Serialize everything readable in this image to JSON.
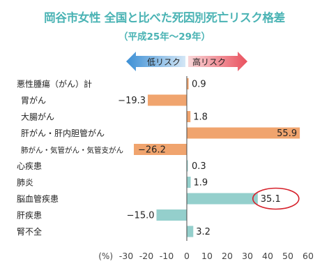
{
  "title": "岡谷市女性 全国と比べた死因別死亡リスク格差",
  "subtitle": "（平成25年〜29年）",
  "legend": {
    "low_risk": "低リスク",
    "high_risk": "高リスク"
  },
  "colors": {
    "title": "#4ab3b4",
    "cancer_bars": "#f0a46e",
    "other_bars": "#94cfcc",
    "low_arrow": "#3c8fd5",
    "high_arrow": "#e9515e",
    "highlight_circle": "#d6202a"
  },
  "chart_data": {
    "type": "bar",
    "orientation": "horizontal",
    "title": "岡谷市女性 全国と比べた死因別死亡リスク格差",
    "subtitle": "（平成25年〜29年）",
    "xlabel": "(%)",
    "xlim": [
      -30,
      60
    ],
    "xticks": [
      "-30",
      "-20",
      "-10",
      "0",
      "10",
      "20",
      "30",
      "40",
      "50",
      "60"
    ],
    "grid": false,
    "categories": [
      "悪性腫瘍（がん）計",
      "胃がん",
      "大腸がん",
      "肝がん・肝内胆管がん",
      "肺がん・気管がん・気管支がん",
      "心疾患",
      "肺炎",
      "脳血管疾患",
      "肝疾患",
      "腎不全"
    ],
    "value_labels": [
      "0.9",
      "−19.3",
      "1.8",
      "55.9",
      "−26.2",
      "0.3",
      "1.9",
      "35.1",
      "−15.0",
      "3.2"
    ],
    "values": [
      0.9,
      -19.3,
      1.8,
      55.9,
      -26.2,
      0.3,
      1.9,
      35.1,
      -15.0,
      3.2
    ],
    "groups": [
      "cancer",
      "cancer",
      "cancer",
      "cancer",
      "cancer",
      "other",
      "other",
      "other",
      "other",
      "other"
    ],
    "highlighted_category": "脳血管疾患"
  }
}
